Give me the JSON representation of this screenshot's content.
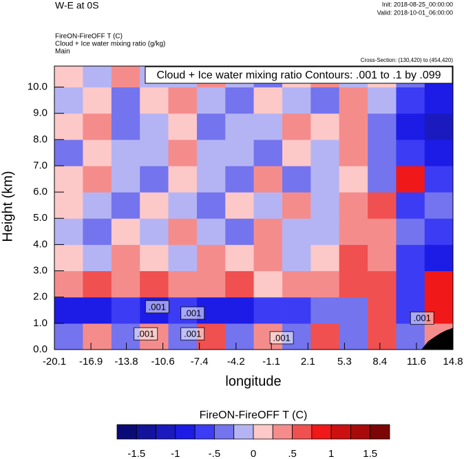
{
  "chart_data": {
    "type": "heatmap",
    "title": "W-E at 0S",
    "init": "Init: 2018-08-25_00:00:00",
    "valid": "Valid: 2018-10-01_06:00:00",
    "subtitles": [
      "FireON-FireOFF T   (C)",
      "Cloud + Ice water mixing ratio   (g/kg)",
      "Main"
    ],
    "cross_section": "Cross-Section: (130,420) to (454,420)",
    "contour_info": "Cloud + Ice water mixing ratio Contours: .001 to .1 by .099",
    "xlabel": "longitude",
    "ylabel": "Height (km)",
    "xlim": [
      -20.1,
      14.8
    ],
    "ylim": [
      0,
      10.8
    ],
    "xticks": [
      -20.1,
      -16.9,
      -13.8,
      -10.6,
      -7.4,
      -4.2,
      -1.1,
      2.1,
      5.3,
      8.4,
      11.6,
      14.8
    ],
    "yticks": [
      {
        "value": 0,
        "label": "0.0"
      },
      {
        "value": 1,
        "label": "1.0"
      },
      {
        "value": 2,
        "label": "2.0"
      },
      {
        "value": 3,
        "label": "3.0"
      },
      {
        "value": 4,
        "label": "4.0"
      },
      {
        "value": 5,
        "label": "5.0"
      },
      {
        "value": 6,
        "label": "6.0"
      },
      {
        "value": 7,
        "label": "7.0"
      },
      {
        "value": 8,
        "label": "8.0"
      },
      {
        "value": 9,
        "label": "9.0"
      },
      {
        "value": 10,
        "label": "10.0"
      }
    ],
    "x": [
      -18.85,
      -16.36,
      -13.86,
      -11.37,
      -8.88,
      -6.38,
      -3.89,
      -1.4,
      1.1,
      3.59,
      6.08,
      8.58,
      11.07,
      13.56
    ],
    "y": [
      0.5,
      1.5,
      2.5,
      3.5,
      4.5,
      5.5,
      6.5,
      7.5,
      8.5,
      9.5,
      10.5
    ],
    "z": [
      [
        -0.3,
        0.4,
        -0.4,
        0.3,
        -0.5,
        0.5,
        -0.3,
        0.4,
        -0.4,
        0.5,
        -0.3,
        0.6,
        -0.5,
        0.4
      ],
      [
        -1.0,
        -0.8,
        -0.7,
        -0.9,
        -0.6,
        -0.8,
        -1.0,
        -0.7,
        -0.6,
        -0.5,
        -0.4,
        0.5,
        -0.6,
        0.8
      ],
      [
        0.3,
        0.5,
        0.4,
        0.6,
        0.3,
        0.4,
        0.5,
        0.2,
        0.4,
        0.3,
        0.6,
        0.5,
        -0.7,
        0.9
      ],
      [
        0.2,
        -0.2,
        0.3,
        0.2,
        -0.2,
        0.3,
        0.2,
        0.4,
        -0.2,
        0.2,
        0.5,
        0.3,
        -0.6,
        -1.0
      ],
      [
        -0.2,
        -0.3,
        0.2,
        -0.2,
        0.3,
        -0.2,
        -0.3,
        0.3,
        -0.2,
        -0.2,
        0.3,
        0.4,
        -0.5,
        -0.6
      ],
      [
        0.2,
        -0.2,
        -0.3,
        0.2,
        -0.2,
        -0.3,
        0.2,
        -0.2,
        0.3,
        -0.2,
        0.4,
        0.5,
        -0.6,
        -0.4
      ],
      [
        0.2,
        0.3,
        -0.2,
        -0.3,
        0.2,
        -0.2,
        -0.3,
        0.4,
        -0.3,
        -0.2,
        0.2,
        -0.3,
        0.8,
        -0.7
      ],
      [
        -0.3,
        0.2,
        -0.2,
        -0.2,
        0.3,
        -0.2,
        -0.2,
        -0.3,
        0.2,
        -0.2,
        0.3,
        -0.4,
        -0.6,
        -0.9
      ],
      [
        0.2,
        0.3,
        -0.3,
        -0.2,
        0.2,
        -0.3,
        -0.2,
        -0.2,
        0.3,
        0.2,
        0.4,
        -0.3,
        -0.8,
        -1.1
      ],
      [
        -0.2,
        0.2,
        -0.3,
        0.2,
        0.3,
        -0.2,
        -0.3,
        0.2,
        -0.2,
        -0.3,
        0.3,
        -0.2,
        -0.7,
        -1.0
      ],
      [
        0.2,
        -0.2,
        0.3,
        -0.2,
        -0.2,
        0.3,
        -0.2,
        -0.3,
        0.2,
        0.3,
        -0.2,
        0.2,
        -0.5,
        -0.8
      ]
    ],
    "levels": [
      -1.5,
      -1.25,
      -1,
      -0.75,
      -0.5,
      -0.25,
      0,
      0.25,
      0.5,
      0.75,
      1,
      1.25,
      1.5
    ],
    "colors": [
      "#0b0b78",
      "#13139c",
      "#1a1abf",
      "#1c1ce6",
      "#3c3cf5",
      "#7474ee",
      "#b4b4f4",
      "#fcc8c8",
      "#f58c8c",
      "#f05050",
      "#f01818",
      "#cc1010",
      "#a80a0a",
      "#7c0606"
    ],
    "colorbar_title": "FireON-FireOFF T  (C)",
    "colorbar_ticks": [
      {
        "value": -1.5,
        "label": "-1.5"
      },
      {
        "value": -1,
        "label": "-1"
      },
      {
        "value": -0.5,
        "label": "-.5"
      },
      0,
      {
        "value": 0.5,
        "label": ".5"
      },
      1,
      1.5
    ],
    "contour_labels": [
      {
        "text": ".001",
        "x": -11.1,
        "y": 1.63
      },
      {
        "text": ".001",
        "x": -8.0,
        "y": 1.39
      },
      {
        "text": ".001",
        "x": -12.1,
        "y": 0.6
      },
      {
        "text": ".001",
        "x": -8.0,
        "y": 0.6
      },
      {
        "text": ".001",
        "x": -0.2,
        "y": 0.45
      },
      {
        "text": ".001",
        "x": 12.1,
        "y": 1.2
      }
    ]
  }
}
